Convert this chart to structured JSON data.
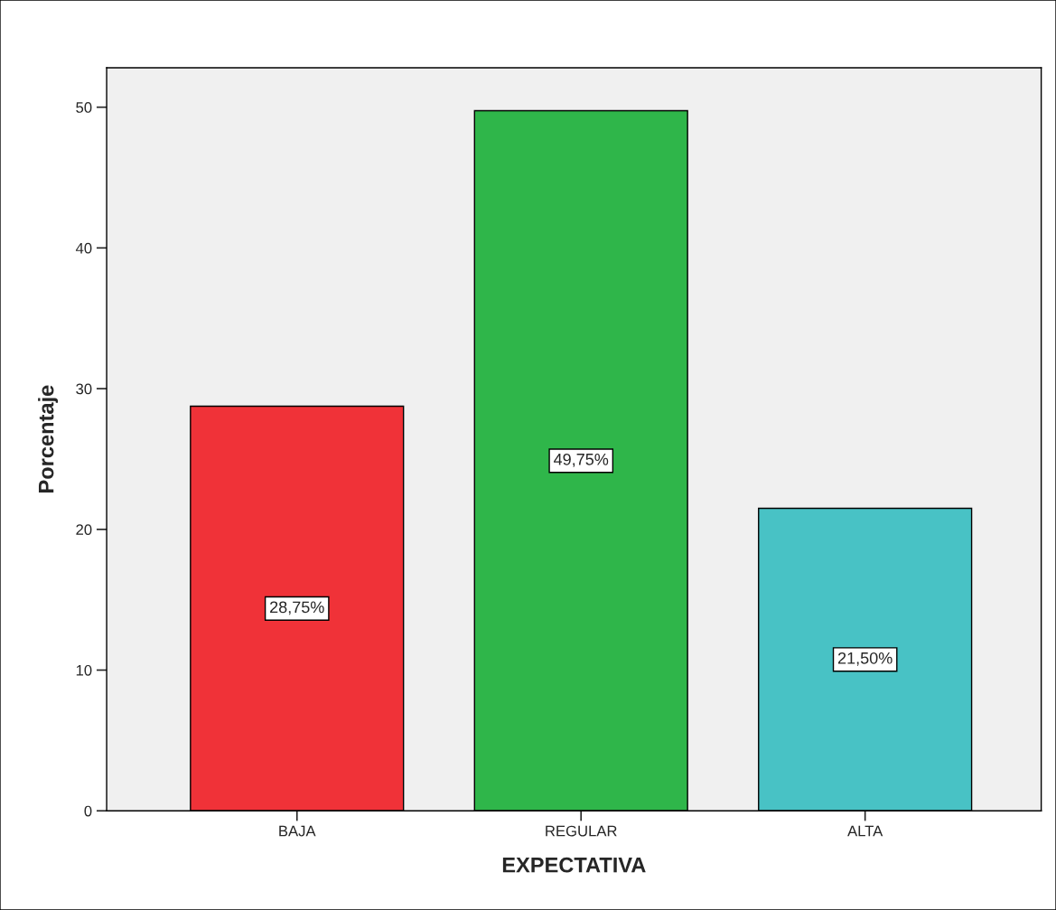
{
  "chart_data": {
    "type": "bar",
    "xlabel": "EXPECTATIVA",
    "ylabel": "Porcentaje",
    "categories": [
      "BAJA",
      "REGULAR",
      "ALTA"
    ],
    "values": [
      28.75,
      49.75,
      21.5
    ],
    "colors": [
      "#f03238",
      "#2fb64a",
      "#48c2c5"
    ],
    "value_labels": [
      "28,75%",
      "49,75%",
      "21,50%"
    ],
    "ylim": [
      0,
      52.8
    ],
    "yticks": [
      0,
      10,
      20,
      30,
      40,
      50
    ],
    "grid": false
  }
}
